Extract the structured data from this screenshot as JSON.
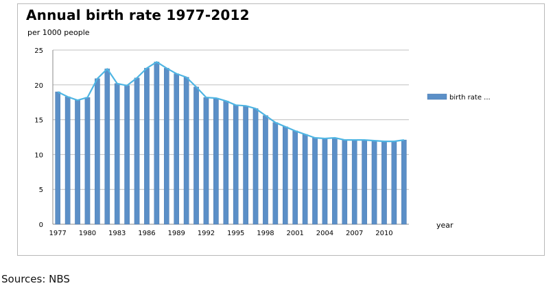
{
  "colors": {
    "bar": "#5b8fc7",
    "bar_edge": "#3f6fa8",
    "line": "#4fb5e3",
    "grid": "#bfbfbf"
  },
  "chart_data": {
    "type": "bar",
    "title": "Annual birth rate 1977-2012",
    "subtitle": "per 1000 people",
    "xlabel": "year",
    "ylabel": "",
    "ylim": [
      0,
      25
    ],
    "y_ticks": [
      0,
      5,
      10,
      15,
      20,
      25
    ],
    "x_tick_labels": [
      "1977",
      "1980",
      "1983",
      "1986",
      "1989",
      "1992",
      "1995",
      "1998",
      "2001",
      "2004",
      "2007",
      "2010"
    ],
    "grid": true,
    "legend_position": "right",
    "categories": [
      1977,
      1978,
      1979,
      1980,
      1981,
      1982,
      1983,
      1984,
      1985,
      1986,
      1987,
      1988,
      1989,
      1990,
      1991,
      1992,
      1993,
      1994,
      1995,
      1996,
      1997,
      1998,
      1999,
      2000,
      2001,
      2002,
      2003,
      2004,
      2005,
      2006,
      2007,
      2008,
      2009,
      2010,
      2011,
      2012
    ],
    "series": [
      {
        "name": "birth rate ...",
        "style": "bar+line",
        "values": [
          19.0,
          18.3,
          17.8,
          18.2,
          20.9,
          22.3,
          20.2,
          19.9,
          21.0,
          22.4,
          23.3,
          22.4,
          21.6,
          21.1,
          19.7,
          18.2,
          18.1,
          17.7,
          17.1,
          17.0,
          16.6,
          15.6,
          14.6,
          14.0,
          13.4,
          12.9,
          12.4,
          12.3,
          12.4,
          12.1,
          12.1,
          12.1,
          12.0,
          11.9,
          11.9,
          12.1
        ]
      }
    ]
  },
  "footer": {
    "source": "Sources: NBS"
  }
}
